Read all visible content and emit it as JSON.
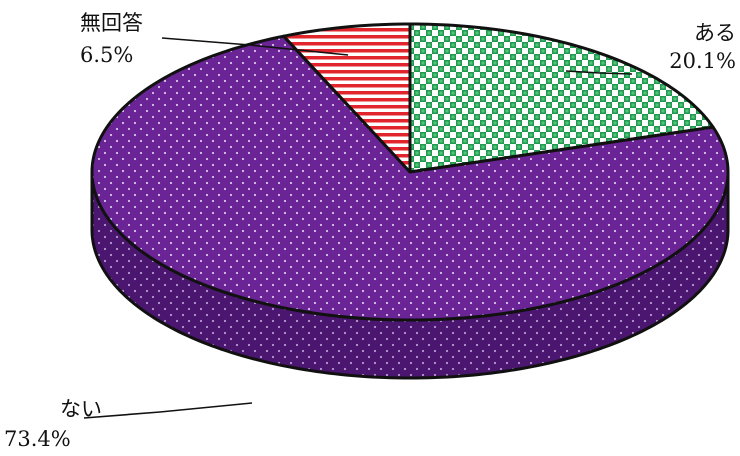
{
  "chart_data": {
    "type": "pie",
    "title": "",
    "slices": [
      {
        "label": "ある",
        "value": 20.1,
        "value_label": "20.1%",
        "color": "#1f9a4e",
        "pattern": "checker"
      },
      {
        "label": "ない",
        "value": 73.4,
        "value_label": "73.4%",
        "color": "#6a2496",
        "pattern": "dots"
      },
      {
        "label": "無回答",
        "value": 6.5,
        "value_label": "6.5%",
        "color": "#e0262c",
        "pattern": "stripes"
      }
    ],
    "style": "3d",
    "start": "12 o'clock",
    "direction": "clockwise"
  }
}
